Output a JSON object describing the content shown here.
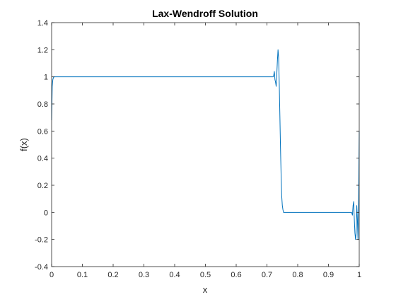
{
  "chart_data": {
    "type": "line",
    "title": "Lax-Wendroff Solution",
    "xlabel": "x",
    "ylabel": "f(x)",
    "xlim": [
      0,
      1
    ],
    "ylim": [
      -0.4,
      1.4
    ],
    "x_ticks": [
      0,
      0.1,
      0.2,
      0.3,
      0.4,
      0.5,
      0.6,
      0.7,
      0.8,
      0.9,
      1
    ],
    "x_tick_labels": [
      "0",
      "0.1",
      "0.2",
      "0.3",
      "0.4",
      "0.5",
      "0.6",
      "0.7",
      "0.8",
      "0.9",
      "1"
    ],
    "y_ticks": [
      -0.4,
      -0.2,
      0,
      0.2,
      0.4,
      0.6,
      0.8,
      1,
      1.2,
      1.4
    ],
    "y_tick_labels": [
      "-0.4",
      "-0.2",
      "0",
      "0.2",
      "0.4",
      "0.6",
      "0.8",
      "1",
      "1.2",
      "1.4"
    ],
    "grid": false,
    "box": true,
    "line_color": "#0072BD",
    "series": [
      {
        "x": [
          0,
          0.002,
          0.004,
          0.006,
          0.008,
          0.01,
          0.05,
          0.1,
          0.2,
          0.3,
          0.4,
          0.5,
          0.6,
          0.7,
          0.715,
          0.72,
          0.722,
          0.724,
          0.726,
          0.728,
          0.73,
          0.732,
          0.734,
          0.736,
          0.738,
          0.74,
          0.742,
          0.744,
          0.746,
          0.748,
          0.75,
          0.752,
          0.754,
          0.756,
          0.758,
          0.76,
          0.765,
          0.77,
          0.8,
          0.9,
          0.96,
          0.97,
          0.975,
          0.978,
          0.98,
          0.982,
          0.984,
          0.986,
          0.988,
          0.99,
          0.992,
          0.994,
          0.996,
          0.998,
          1
        ],
        "y": [
          0.68,
          0.93,
          0.98,
          0.995,
          1.0,
          1.0,
          1.0,
          1.0,
          1.0,
          1.0,
          1.0,
          1.0,
          1.0,
          1.0,
          1.0,
          1.0,
          1.01,
          1.04,
          0.98,
          0.96,
          0.93,
          1.02,
          1.12,
          1.2,
          1.14,
          0.95,
          0.72,
          0.48,
          0.28,
          0.12,
          0.05,
          0.02,
          0.0,
          0.0,
          0.0,
          0.0,
          0.0,
          0.0,
          0.0,
          0.0,
          0.0,
          0.0,
          0.0,
          -0.02,
          0.05,
          0.08,
          -0.05,
          -0.15,
          -0.2,
          -0.15,
          0.05,
          -0.05,
          -0.2,
          0.1,
          0.6
        ]
      }
    ]
  }
}
